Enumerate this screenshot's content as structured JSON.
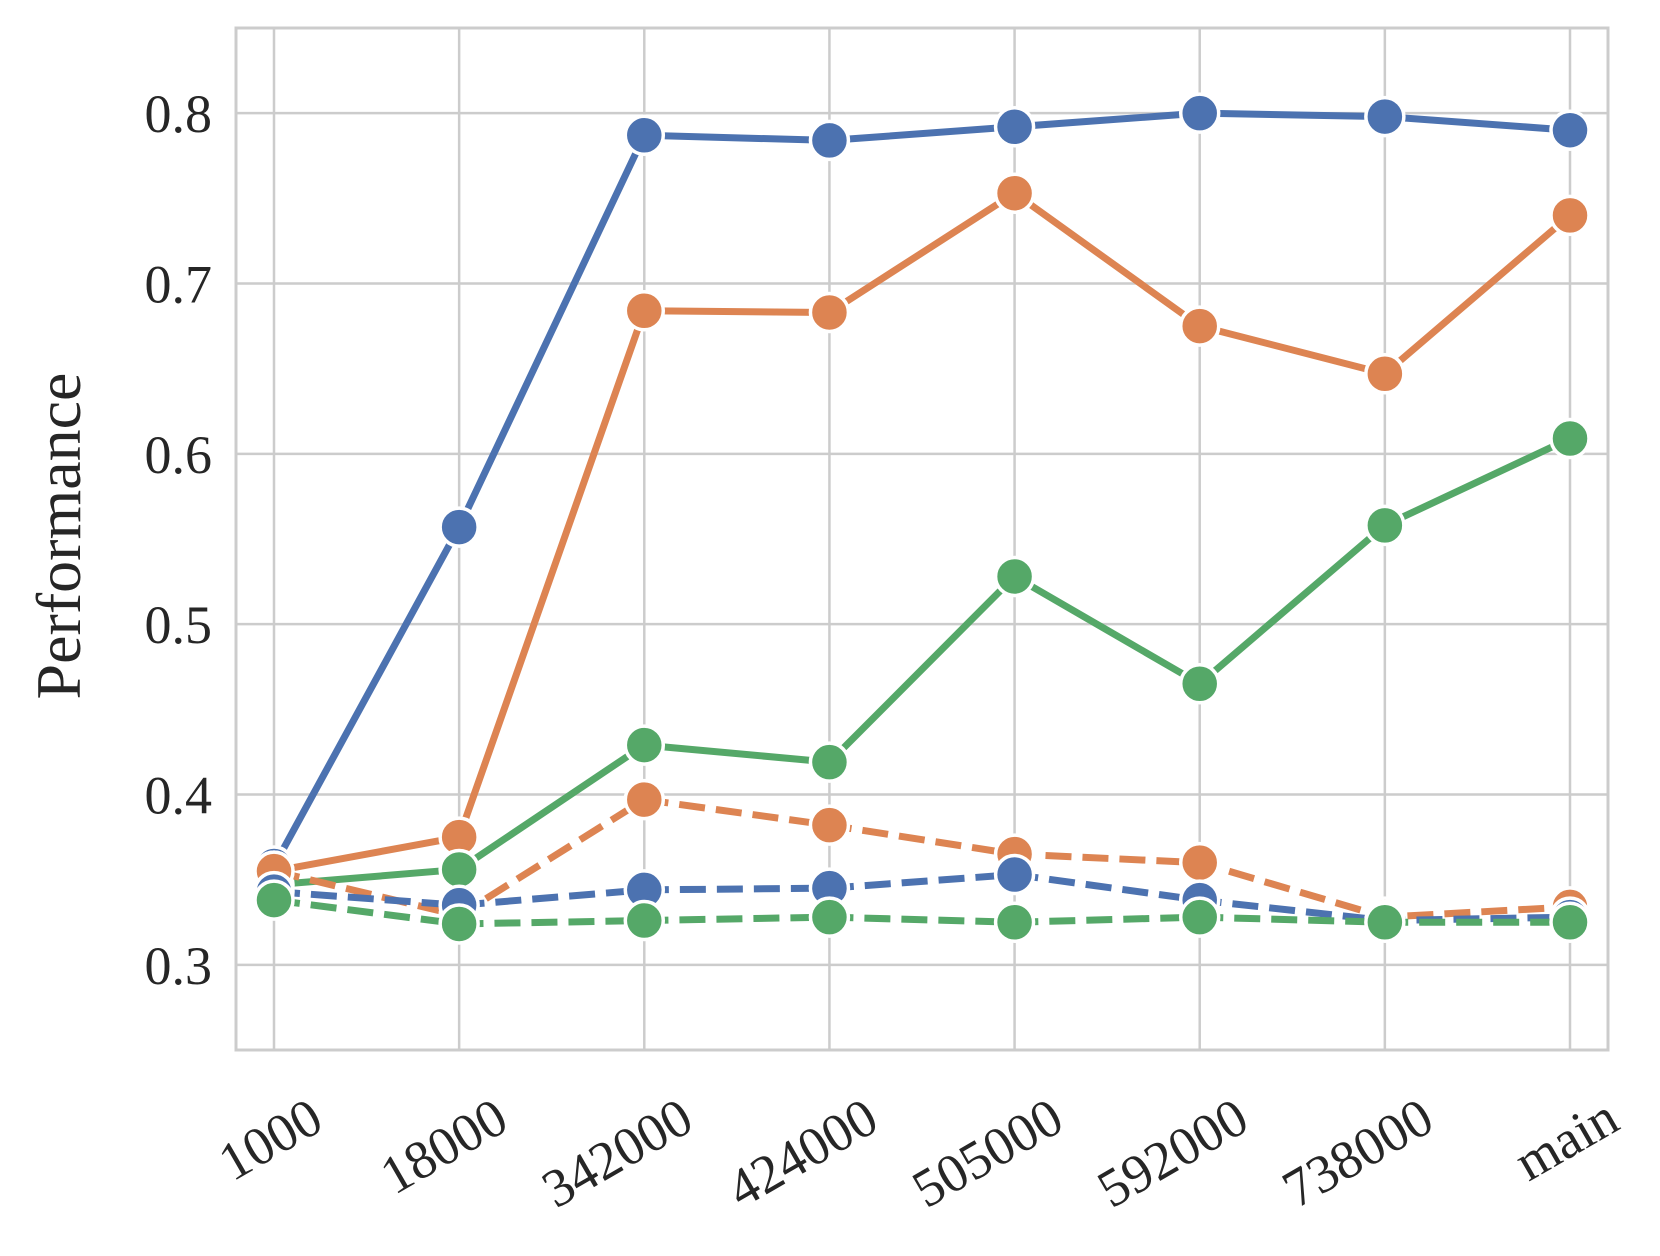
{
  "chart_data": {
    "type": "line",
    "title": "",
    "xlabel": "",
    "ylabel": "Performance",
    "categories": [
      "1000",
      "18000",
      "342000",
      "424000",
      "505000",
      "592000",
      "738000",
      "main"
    ],
    "ylim": [
      0.25,
      0.85
    ],
    "yticks": [
      "0.3",
      "0.4",
      "0.5",
      "0.6",
      "0.7",
      "0.8"
    ],
    "grid": true,
    "legend": "none",
    "series": [
      {
        "color": "#4c72b0",
        "linestyle": "solid",
        "values": [
          0.358,
          0.557,
          0.787,
          0.784,
          0.792,
          0.8,
          0.798,
          0.79
        ]
      },
      {
        "color": "#dd8452",
        "linestyle": "solid",
        "values": [
          0.355,
          0.375,
          0.684,
          0.683,
          0.753,
          0.675,
          0.647,
          0.74
        ]
      },
      {
        "color": "#55a868",
        "linestyle": "solid",
        "values": [
          0.347,
          0.356,
          0.429,
          0.419,
          0.528,
          0.465,
          0.558,
          0.609
        ]
      },
      {
        "color": "#dd8452",
        "linestyle": "dashed",
        "values": [
          0.355,
          0.329,
          0.397,
          0.382,
          0.365,
          0.36,
          0.328,
          0.334
        ]
      },
      {
        "color": "#4c72b0",
        "linestyle": "dashed",
        "values": [
          0.343,
          0.335,
          0.344,
          0.345,
          0.353,
          0.338,
          0.326,
          0.328
        ]
      },
      {
        "color": "#55a868",
        "linestyle": "dashed",
        "values": [
          0.338,
          0.324,
          0.326,
          0.328,
          0.325,
          0.328,
          0.325,
          0.325
        ]
      }
    ]
  }
}
